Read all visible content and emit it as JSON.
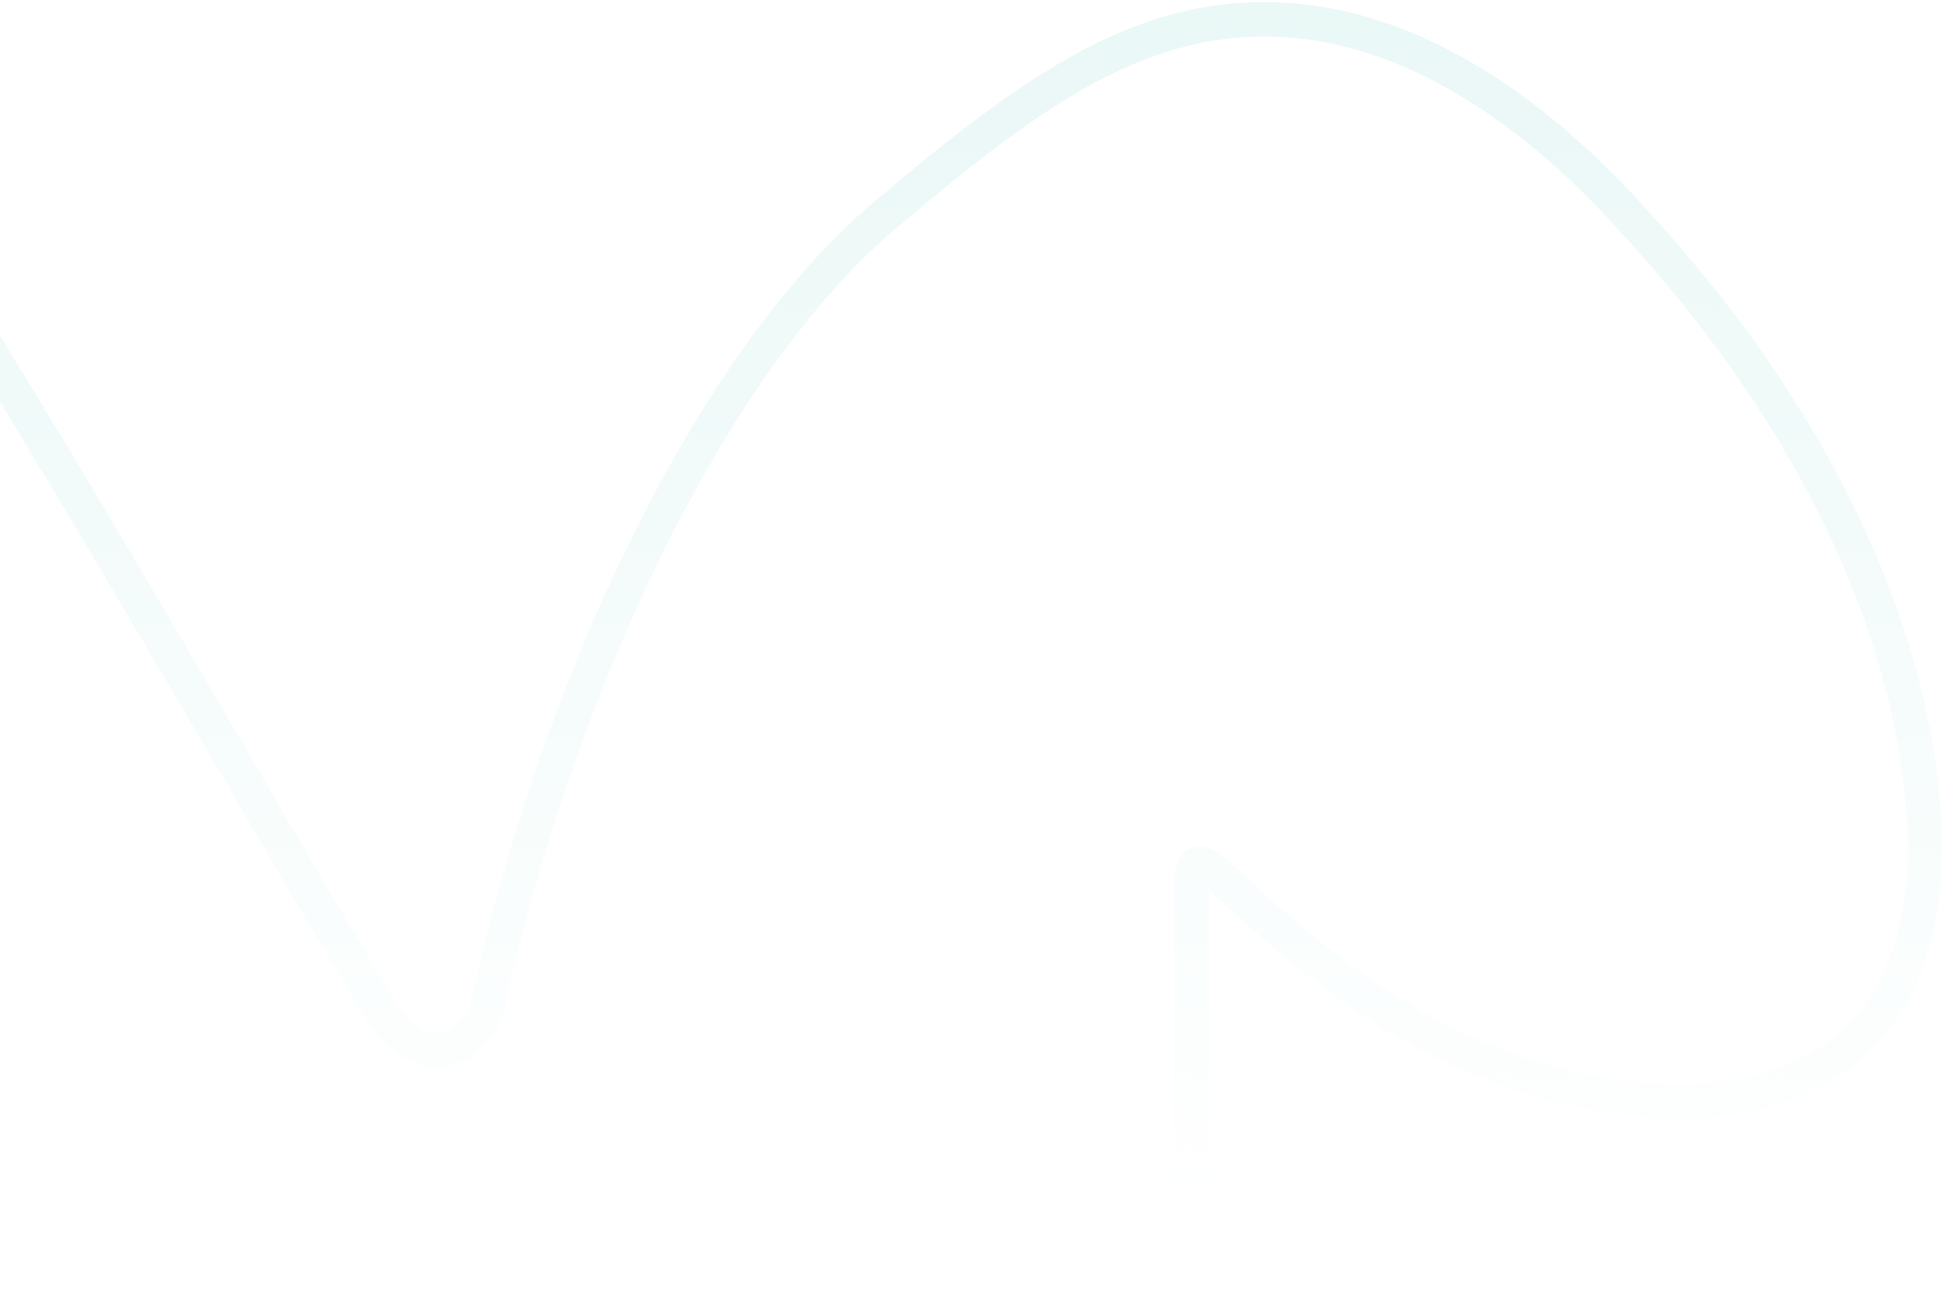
{
  "background": {
    "color": "#ffffff"
  },
  "decoration": {
    "shape": "wavy-line-ribbon",
    "stroke_color": "#dcf3f1",
    "fade_color": "#ffffff",
    "opacity_top": 0.6,
    "opacity_bottom": 0.0
  }
}
